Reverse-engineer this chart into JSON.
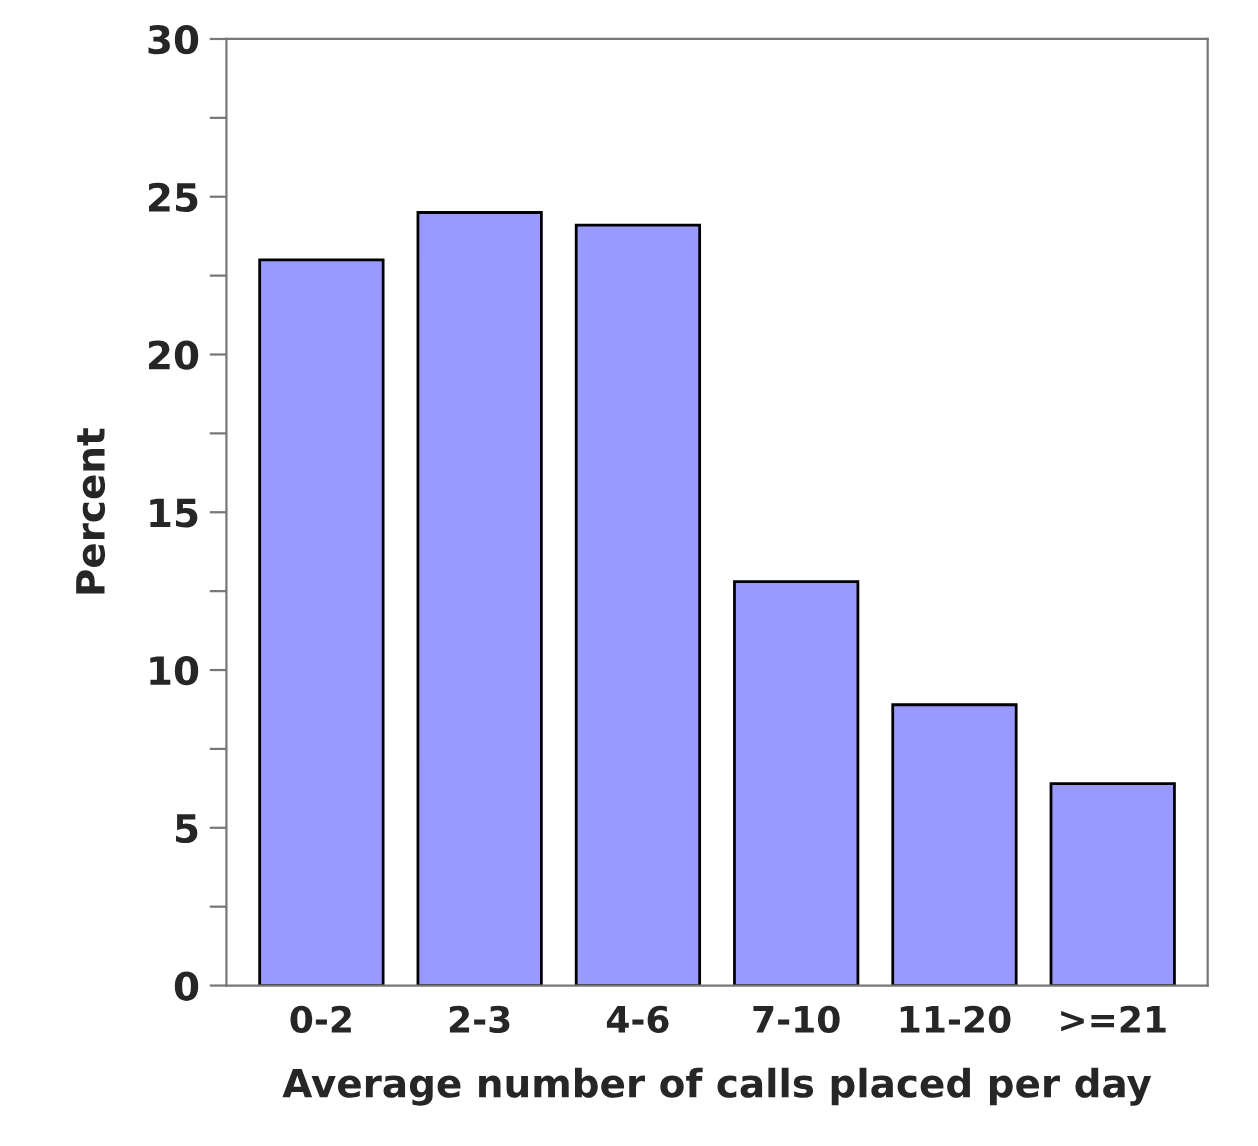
{
  "chart_data": {
    "type": "bar",
    "xlabel": "Average number of calls placed per day",
    "ylabel": "Percent",
    "categories": [
      "0-2",
      "2-3",
      "4-6",
      "7-10",
      "11-20",
      ">=21"
    ],
    "values": [
      23.0,
      24.5,
      24.1,
      12.8,
      8.9,
      6.4
    ],
    "color": "#9999ff",
    "ylim": [
      0,
      30
    ],
    "yticks": [
      0,
      {
        "value": 2.5,
        "label": null
      },
      5,
      {
        "value": 7.5,
        "label": null
      },
      10,
      {
        "value": 12.5,
        "label": null
      },
      15,
      {
        "value": 17.5,
        "label": null
      },
      20,
      {
        "value": 22.5,
        "label": null
      },
      25,
      {
        "value": 27.5,
        "label": null
      },
      30
    ],
    "grid": false,
    "legend": false
  }
}
